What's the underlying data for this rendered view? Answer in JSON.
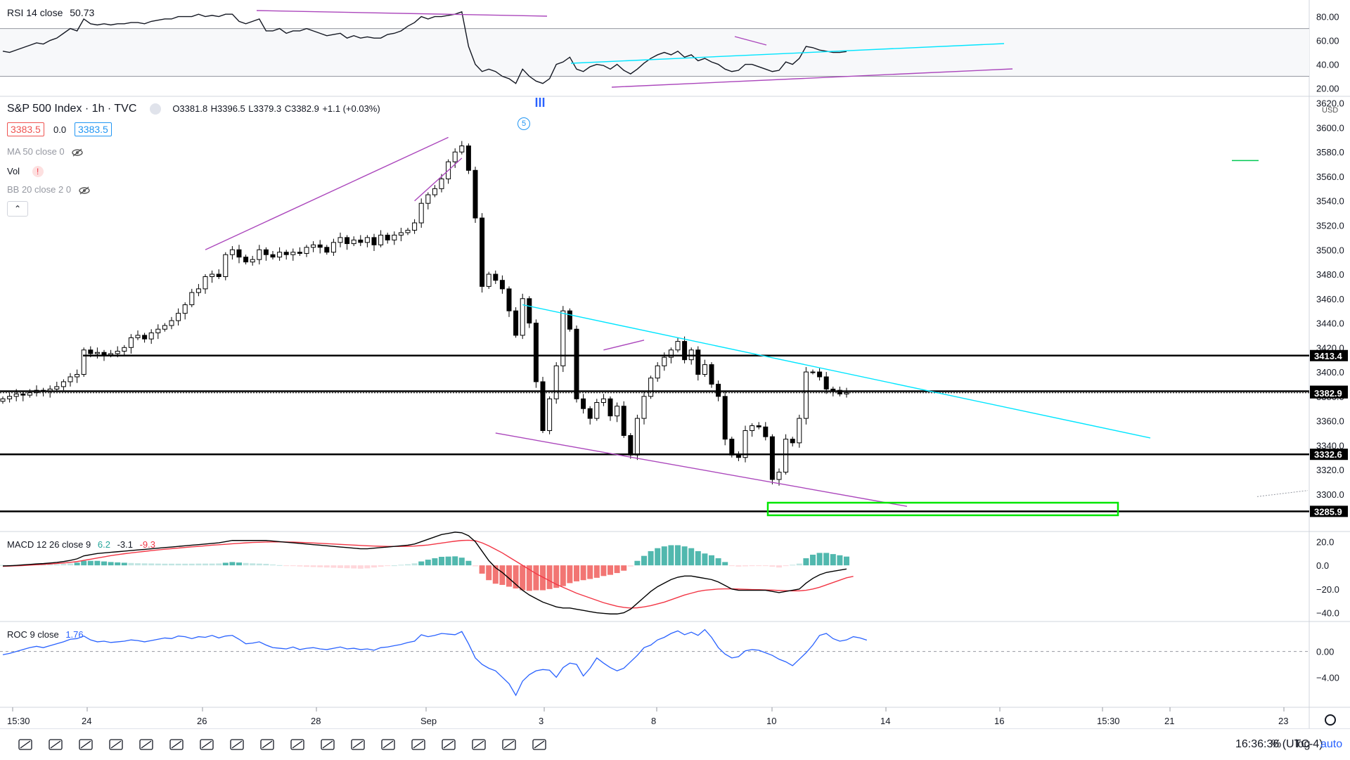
{
  "symbol": {
    "title": "S&P 500 Index · 1h · TVC",
    "ohlc": {
      "o": "O3381.8",
      "h": "H3396.5",
      "l": "L3379.3",
      "c": "C3382.9",
      "chg": "+1.1 (+0.03%)"
    },
    "bid": "3383.5",
    "spread": "0.0",
    "ask": "3383.5"
  },
  "indicators": {
    "ma": "MA 50 close 0",
    "vol": "Vol",
    "bb": "BB 20 close 2 0",
    "rsi": {
      "label": "RSI 14 close",
      "value": "50.73"
    },
    "macd": {
      "label": "MACD 12 26 close 9",
      "v1": "6.2",
      "v2": "-3.1",
      "v3": "-9.3"
    },
    "roc": {
      "label": "ROC 9 close",
      "value": "1.76"
    }
  },
  "wave_label": "5",
  "status": {
    "clock": "16:36:36 (UTC-4)",
    "percent": "%",
    "log": "log",
    "auto": "auto"
  },
  "colors": {
    "up": "#ffffff",
    "down": "#000000",
    "trend_purple": "#ab47bc",
    "trend_cyan": "#00e5ff",
    "macd_line": "#000000",
    "signal_line": "#f23645",
    "roc_line": "#2962ff",
    "box_green": "#00e600"
  },
  "chart_data": [
    {
      "type": "candlestick",
      "title": "S&P 500 Index · 1h · TVC",
      "ylim": [
        3270,
        3625
      ],
      "y_ticks": [
        "3620.0",
        "3600.0",
        "3580.0",
        "3560.0",
        "3540.0",
        "3520.0",
        "3500.0",
        "3480.0",
        "3460.0",
        "3440.0",
        "3420.0",
        "3400.0",
        "3380.0",
        "3360.0",
        "3340.0",
        "3320.0",
        "3300.0"
      ],
      "price_levels": [
        {
          "label": "3413.4",
          "value": 3413.4
        },
        {
          "label": "3384.2",
          "value": 3384.2
        },
        {
          "label": "3382.9",
          "value": 3382.9
        },
        {
          "label": "3332.6",
          "value": 3332.6
        },
        {
          "label": "3285.9",
          "value": 3285.9
        }
      ],
      "currency": "USD",
      "x_ticks": [
        "15:30",
        "24",
        "26",
        "28",
        "Sep",
        "3",
        "8",
        "10",
        "14",
        "16",
        "15:30",
        "21",
        "23"
      ],
      "closes": [
        3378,
        3380,
        3382,
        3381,
        3383,
        3385,
        3384,
        3386,
        3388,
        3392,
        3396,
        3398,
        3418,
        3415,
        3416,
        3414,
        3415,
        3417,
        3420,
        3428,
        3430,
        3427,
        3432,
        3435,
        3438,
        3442,
        3448,
        3455,
        3465,
        3468,
        3478,
        3480,
        3478,
        3496,
        3500,
        3494,
        3490,
        3492,
        3500,
        3496,
        3494,
        3498,
        3496,
        3498,
        3497,
        3502,
        3504,
        3502,
        3498,
        3506,
        3510,
        3505,
        3508,
        3506,
        3510,
        3504,
        3512,
        3508,
        3512,
        3514,
        3516,
        3522,
        3538,
        3545,
        3550,
        3558,
        3572,
        3580,
        3585,
        3565,
        3526,
        3470,
        3480,
        3475,
        3468,
        3450,
        3430,
        3460,
        3440,
        3392,
        3352,
        3378,
        3405,
        3450,
        3435,
        3378,
        3370,
        3362,
        3375,
        3378,
        3364,
        3372,
        3348,
        3332,
        3362,
        3380,
        3395,
        3405,
        3412,
        3418,
        3425,
        3410,
        3418,
        3398,
        3406,
        3390,
        3380,
        3345,
        3332,
        3330,
        3352,
        3356,
        3355,
        3347,
        3312,
        3318,
        3345,
        3342,
        3362,
        3400,
        3400,
        3396,
        3386,
        3385,
        3382,
        3383
      ],
      "rsi": [
        51,
        50,
        52,
        54,
        56,
        58,
        57,
        60,
        62,
        66,
        70,
        68,
        78,
        74,
        73,
        74,
        73,
        74,
        74,
        75,
        75,
        74,
        76,
        77,
        78,
        78,
        80,
        80,
        80,
        82,
        80,
        81,
        80,
        82,
        82,
        76,
        74,
        76,
        78,
        68,
        68,
        70,
        66,
        68,
        68,
        70,
        68,
        66,
        64,
        65,
        66,
        62,
        64,
        62,
        63,
        62,
        62,
        65,
        66,
        68,
        72,
        75,
        80,
        78,
        80,
        80,
        81,
        82,
        84,
        55,
        40,
        34,
        36,
        34,
        30,
        28,
        24,
        36,
        30,
        26,
        24,
        28,
        40,
        42,
        46,
        36,
        34,
        38,
        40,
        39,
        36,
        40,
        35,
        32,
        36,
        41,
        45,
        48,
        50,
        48,
        51,
        46,
        48,
        43,
        45,
        42,
        40,
        36,
        34,
        35,
        40,
        40,
        38,
        36,
        34,
        35,
        42,
        40,
        45,
        55,
        54,
        52,
        51,
        50,
        50,
        50.7
      ],
      "macd": [
        -0.5,
        -0.3,
        0,
        0.4,
        0.8,
        1.2,
        1.5,
        2.0,
        2.5,
        3.2,
        4.2,
        5.5,
        8,
        9,
        10,
        10.5,
        11,
        11.5,
        12,
        12.5,
        13,
        13.5,
        14,
        14.5,
        15,
        15.5,
        16,
        16.5,
        17,
        17.5,
        18,
        18.5,
        19,
        20,
        21,
        21,
        21,
        21,
        21,
        21,
        20.5,
        20,
        19.5,
        19,
        18.5,
        18,
        17.5,
        17,
        16.5,
        16,
        15.5,
        15,
        14.5,
        14,
        14,
        14.5,
        15,
        15.5,
        16,
        16.5,
        17,
        18,
        20,
        22,
        24,
        26,
        27,
        28,
        27.5,
        25,
        20,
        12,
        4,
        -2,
        -6,
        -11,
        -16,
        -21,
        -25,
        -28,
        -31,
        -33,
        -35,
        -36,
        -36,
        -37,
        -38,
        -39,
        -40,
        -40.5,
        -41,
        -41,
        -40,
        -37,
        -32,
        -27,
        -22,
        -18,
        -15,
        -12,
        -10,
        -9,
        -9,
        -10,
        -11,
        -12,
        -14,
        -17,
        -20,
        -21,
        -21,
        -21,
        -21,
        -21,
        -22,
        -23,
        -22,
        -21,
        -20,
        -15,
        -11,
        -8,
        -6,
        -5,
        -4,
        -3.1
      ],
      "signal": [
        -0.8,
        -0.6,
        -0.4,
        -0.2,
        0.2,
        0.5,
        0.8,
        1.2,
        1.6,
        2,
        2.6,
        3.2,
        4.2,
        5.2,
        6.2,
        7.2,
        8.2,
        9,
        9.8,
        10.5,
        11.2,
        11.8,
        12.4,
        13,
        13.6,
        14.1,
        14.6,
        15.1,
        15.6,
        16,
        16.5,
        17,
        17.4,
        17.8,
        18.2,
        18.6,
        19,
        19.3,
        19.5,
        19.7,
        19.8,
        19.8,
        19.7,
        19.6,
        19.4,
        19.2,
        18.9,
        18.6,
        18.3,
        18,
        17.7,
        17.4,
        17.1,
        16.8,
        16.5,
        16.3,
        16.1,
        16,
        16,
        16,
        16.1,
        16.3,
        16.7,
        17.2,
        18,
        18.8,
        19.6,
        20.4,
        21,
        21.2,
        20.8,
        19,
        16.5,
        13.5,
        10.5,
        7,
        3.5,
        0,
        -3.5,
        -7,
        -10,
        -13,
        -16,
        -18.5,
        -21,
        -23.5,
        -25.5,
        -27.5,
        -29.5,
        -31.5,
        -33,
        -34.5,
        -35.5,
        -36,
        -35.8,
        -35,
        -34,
        -32.5,
        -31,
        -29,
        -27,
        -25,
        -23.5,
        -22,
        -21,
        -20.5,
        -20,
        -19.8,
        -19.8,
        -20,
        -20.2,
        -20.4,
        -20.5,
        -20.7,
        -20.9,
        -21.2,
        -21.4,
        -21.5,
        -21.5,
        -21,
        -20,
        -18.5,
        -16.5,
        -14.5,
        -12.5,
        -10.5,
        -9.3
      ],
      "roc": [
        -0.5,
        -0.3,
        0,
        0.3,
        0.6,
        0.8,
        0.6,
        0.9,
        1.2,
        1.5,
        1.9,
        2.0,
        2.4,
        1.8,
        1.5,
        1.6,
        1.4,
        1.5,
        1.6,
        1.8,
        1.7,
        1.5,
        1.7,
        1.9,
        2.1,
        2.0,
        2.4,
        2.3,
        2.0,
        2.3,
        2.2,
        2.5,
        2.1,
        2.4,
        2.5,
        1.9,
        1.2,
        1.3,
        1.5,
        1.0,
        0.6,
        0.5,
        0.4,
        0.7,
        0.3,
        0.5,
        0.6,
        0.4,
        0.3,
        0.5,
        0.7,
        0.4,
        0.5,
        0.3,
        0.4,
        0.2,
        0.6,
        0.7,
        0.9,
        1.1,
        1.4,
        1.6,
        2.6,
        2.3,
        2.5,
        2.8,
        2.7,
        2.6,
        3.1,
        1.2,
        -1.0,
        -2.0,
        -2.6,
        -3.0,
        -4.0,
        -5.0,
        -6.8,
        -4.6,
        -3.6,
        -3.0,
        -2.8,
        -2.9,
        -4.0,
        -2.5,
        -1.8,
        -2.0,
        -3.8,
        -2.6,
        -1.0,
        -1.8,
        -2.5,
        -3.0,
        -2.6,
        -1.6,
        -0.6,
        0.6,
        1.0,
        1.8,
        2.2,
        2.8,
        3.2,
        2.6,
        3.0,
        2.5,
        3.4,
        2.2,
        0.6,
        -0.4,
        -1.0,
        -0.8,
        0.1,
        0.3,
        0.2,
        -0.2,
        -0.6,
        -1.2,
        -1.6,
        -2.2,
        -1.2,
        -0.2,
        1.0,
        2.5,
        2.8,
        2.0,
        1.6,
        1.8,
        2.3,
        2.1,
        1.76
      ]
    }
  ]
}
